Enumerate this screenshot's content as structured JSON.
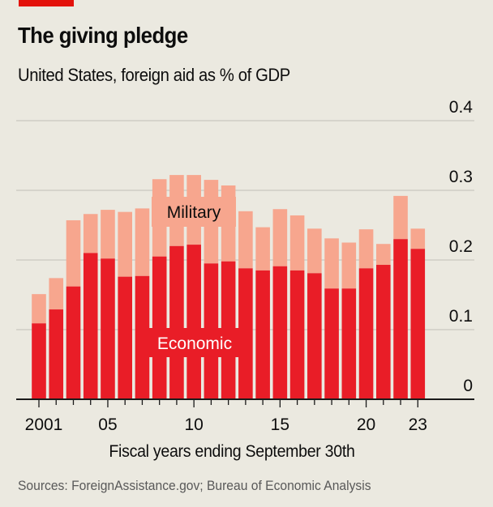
{
  "header": {
    "title": "The giving pledge",
    "subtitle": "United States, foreign aid as % of GDP"
  },
  "footer": {
    "source": "Sources: ForeignAssistance.gov; Bureau of Economic Analysis"
  },
  "colors": {
    "economic": "#e91d27",
    "military": "#f7a68e",
    "brand_red": "#e3120b",
    "gridline": "#c9c8c0",
    "axis": "#1a1a1a"
  },
  "chart_data": {
    "type": "bar",
    "stacked": true,
    "title": "The giving pledge",
    "subtitle": "United States, foreign aid as % of GDP",
    "xlabel": "Fiscal years ending September 30th",
    "ylabel": "",
    "ylim": [
      0,
      0.4
    ],
    "y_ticks": [
      0,
      0.1,
      0.2,
      0.3,
      0.4
    ],
    "y_tick_labels": [
      "0",
      "0.1",
      "0.2",
      "0.3",
      "0.4"
    ],
    "y_axis_side": "right",
    "grid": true,
    "categories": [
      "2001",
      "2002",
      "2003",
      "2004",
      "2005",
      "2006",
      "2007",
      "2008",
      "2009",
      "2010",
      "2011",
      "2012",
      "2013",
      "2014",
      "2015",
      "2016",
      "2017",
      "2018",
      "2019",
      "2020",
      "2021",
      "2022",
      "2023"
    ],
    "x_tick_labels": [
      {
        "year": "2001",
        "label": "2001"
      },
      {
        "year": "2005",
        "label": "05"
      },
      {
        "year": "2010",
        "label": "10"
      },
      {
        "year": "2015",
        "label": "15"
      },
      {
        "year": "2020",
        "label": "20"
      },
      {
        "year": "2023",
        "label": "23"
      }
    ],
    "series": [
      {
        "name": "Economic",
        "label": "Economic",
        "values": [
          0.109,
          0.129,
          0.162,
          0.21,
          0.202,
          0.176,
          0.177,
          0.205,
          0.22,
          0.222,
          0.195,
          0.198,
          0.188,
          0.185,
          0.191,
          0.185,
          0.181,
          0.159,
          0.159,
          0.188,
          0.193,
          0.23,
          0.216
        ]
      },
      {
        "name": "Military",
        "label": "Military",
        "values": [
          0.042,
          0.045,
          0.095,
          0.056,
          0.07,
          0.093,
          0.097,
          0.111,
          0.102,
          0.1,
          0.12,
          0.109,
          0.082,
          0.062,
          0.082,
          0.079,
          0.064,
          0.072,
          0.066,
          0.056,
          0.03,
          0.062,
          0.029
        ]
      }
    ],
    "legend": "inline labels on bars"
  }
}
